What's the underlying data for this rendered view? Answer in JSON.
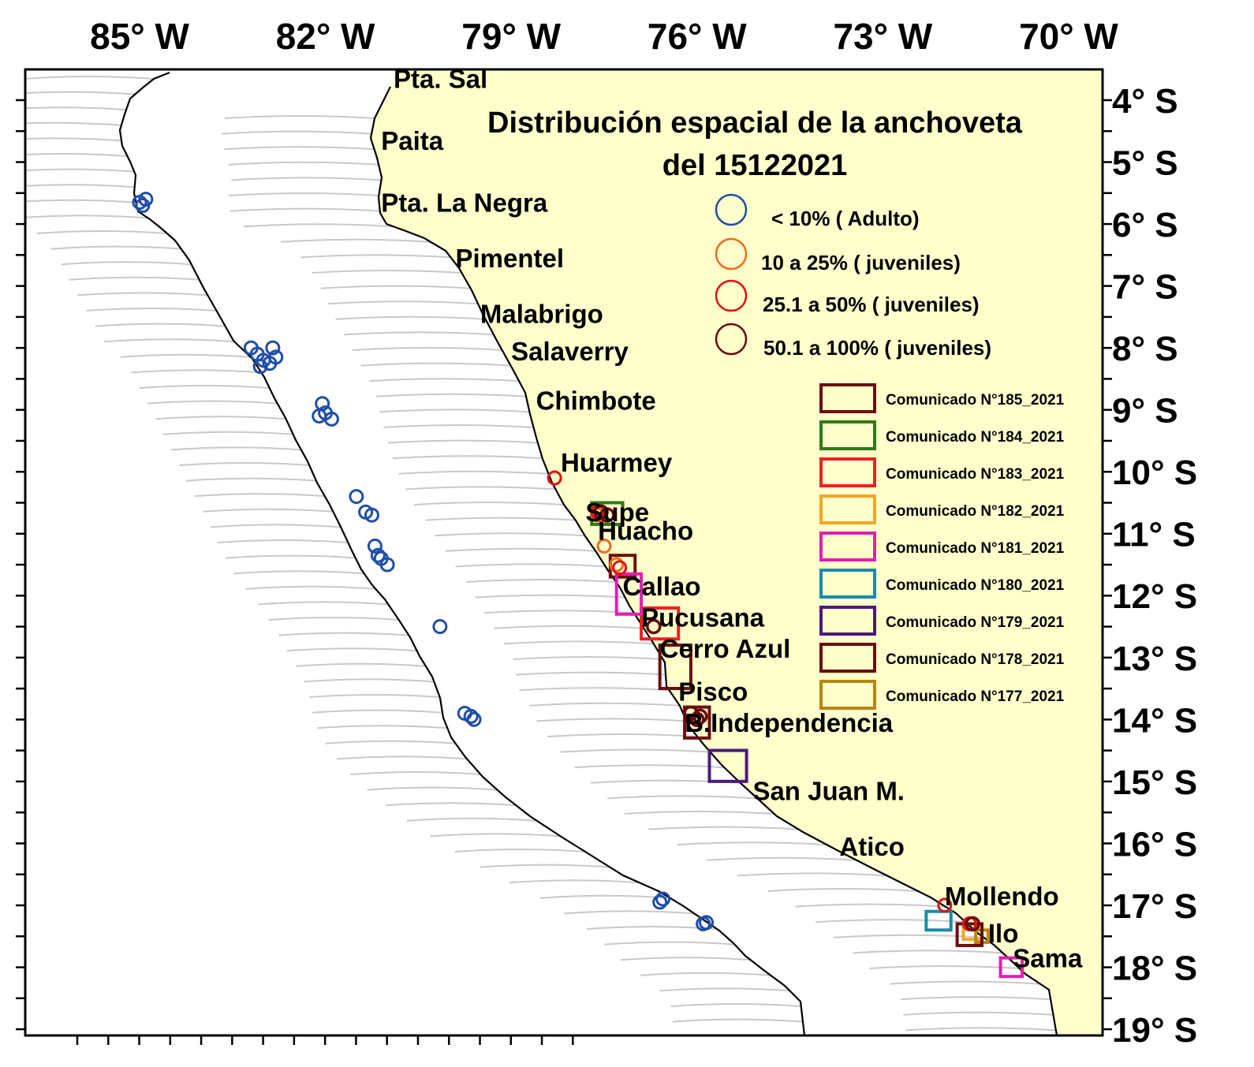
{
  "title": {
    "line1": "Distribución espacial de la anchoveta",
    "line2": "del 15122021"
  },
  "axes": {
    "lon_labels": [
      "85° W",
      "82° W",
      "79° W",
      "76° W",
      "73° W",
      "70° W"
    ],
    "lat_labels": [
      "4° S",
      "5° S",
      "6° S",
      "7° S",
      "8° S",
      "9° S",
      "10° S",
      "11° S",
      "12° S",
      "13° S",
      "14° S",
      "15° S",
      "16° S",
      "17° S",
      "18° S",
      "19° S"
    ]
  },
  "places": [
    {
      "name": "Pta. Sal",
      "lon": -80.9,
      "lat": -3.8
    },
    {
      "name": "Paita",
      "lon": -81.1,
      "lat": -4.8
    },
    {
      "name": "Pta. La Negra",
      "lon": -81.1,
      "lat": -5.8
    },
    {
      "name": "Pimentel",
      "lon": -79.9,
      "lat": -6.7
    },
    {
      "name": "Malabrigo",
      "lon": -79.5,
      "lat": -7.6
    },
    {
      "name": "Salaverry",
      "lon": -79.0,
      "lat": -8.2
    },
    {
      "name": "Chimbote",
      "lon": -78.6,
      "lat": -9.0
    },
    {
      "name": "Huarmey",
      "lon": -78.2,
      "lat": -10.0
    },
    {
      "name": "Supe",
      "lon": -77.8,
      "lat": -10.8
    },
    {
      "name": "Huacho",
      "lon": -77.6,
      "lat": -11.1
    },
    {
      "name": "Callao",
      "lon": -77.2,
      "lat": -12.0
    },
    {
      "name": "Pucusana",
      "lon": -76.9,
      "lat": -12.5
    },
    {
      "name": "Cerro Azul",
      "lon": -76.6,
      "lat": -13.0
    },
    {
      "name": "Pisco",
      "lon": -76.3,
      "lat": -13.7
    },
    {
      "name": "B.Independencia",
      "lon": -76.2,
      "lat": -14.2
    },
    {
      "name": "San Juan M.",
      "lon": -75.1,
      "lat": -15.3
    },
    {
      "name": "Atico",
      "lon": -73.7,
      "lat": -16.2
    },
    {
      "name": "Mollendo",
      "lon": -72.0,
      "lat": -17.0
    },
    {
      "name": "Ilo",
      "lon": -71.3,
      "lat": -17.6
    },
    {
      "name": "Sama",
      "lon": -70.9,
      "lat": -18.0
    }
  ],
  "circle_legend": [
    {
      "label": "< 10% ( Adulto)",
      "color": "#1f4ea8"
    },
    {
      "label": "10 a 25% ( juveniles)",
      "color": "#ee6a1e"
    },
    {
      "label": "25.1 a 50% ( juveniles)",
      "color": "#e01010"
    },
    {
      "label": "50.1 a 100%  ( juveniles)",
      "color": "#6a0a0a"
    }
  ],
  "box_legend": [
    {
      "label": "Comunicado N°185_2021",
      "color": "#6a1010"
    },
    {
      "label": "Comunicado N°184_2021",
      "color": "#2e7a1a"
    },
    {
      "label": "Comunicado N°183_2021",
      "color": "#f02020"
    },
    {
      "label": "Comunicado N°182_2021",
      "color": "#f5a623"
    },
    {
      "label": "Comunicado N°181_2021",
      "color": "#e020b0"
    },
    {
      "label": "Comunicado N°180_2021",
      "color": "#1a8aa8"
    },
    {
      "label": "Comunicado N°179_2021",
      "color": "#4a1a7a"
    },
    {
      "label": "Comunicado N°178_2021",
      "color": "#6a1010"
    },
    {
      "label": "Comunicado N°177_2021",
      "color": "#b8860b"
    }
  ],
  "zones": [
    {
      "comunicado": "185",
      "lon": [
        -77.4,
        -77.0
      ],
      "lat": [
        -11.35,
        -11.7
      ]
    },
    {
      "comunicado": "184",
      "lon": [
        -77.7,
        -77.2
      ],
      "lat": [
        -10.5,
        -10.85
      ]
    },
    {
      "comunicado": "183",
      "lon": [
        -76.9,
        -76.3
      ],
      "lat": [
        -12.2,
        -12.7
      ]
    },
    {
      "comunicado": "181",
      "lon": [
        -77.3,
        -76.9
      ],
      "lat": [
        -11.65,
        -12.3
      ]
    },
    {
      "comunicado": "178",
      "lon": [
        -76.6,
        -76.1
      ],
      "lat": [
        -12.8,
        -13.5
      ]
    },
    {
      "comunicado": "185",
      "lon": [
        -76.2,
        -75.8
      ],
      "lat": [
        -13.8,
        -14.3
      ]
    },
    {
      "comunicado": "179",
      "lon": [
        -75.8,
        -75.2
      ],
      "lat": [
        -14.5,
        -15.0
      ]
    },
    {
      "comunicado": "180",
      "lon": [
        -72.3,
        -71.9
      ],
      "lat": [
        -17.1,
        -17.4
      ]
    },
    {
      "comunicado": "182",
      "lon": [
        -71.7,
        -71.4
      ],
      "lat": [
        -17.3,
        -17.55
      ]
    },
    {
      "comunicado": "177",
      "lon": [
        -71.5,
        -71.3
      ],
      "lat": [
        -17.4,
        -17.6
      ]
    },
    {
      "comunicado": "178",
      "lon": [
        -71.8,
        -71.4
      ],
      "lat": [
        -17.3,
        -17.65
      ]
    },
    {
      "comunicado": "181",
      "lon": [
        -71.1,
        -70.75
      ],
      "lat": [
        -17.85,
        -18.15
      ]
    }
  ],
  "obs_adult": [
    {
      "lon": -85.0,
      "lat": -5.65
    },
    {
      "lon": -84.95,
      "lat": -5.7
    },
    {
      "lon": -84.9,
      "lat": -5.6
    },
    {
      "lon": -83.2,
      "lat": -8.0
    },
    {
      "lon": -83.1,
      "lat": -8.1
    },
    {
      "lon": -83.0,
      "lat": -8.2
    },
    {
      "lon": -82.9,
      "lat": -8.25
    },
    {
      "lon": -82.8,
      "lat": -8.15
    },
    {
      "lon": -82.85,
      "lat": -8.0
    },
    {
      "lon": -83.05,
      "lat": -8.3
    },
    {
      "lon": -82.05,
      "lat": -8.9
    },
    {
      "lon": -82.0,
      "lat": -9.05
    },
    {
      "lon": -82.1,
      "lat": -9.1
    },
    {
      "lon": -81.9,
      "lat": -9.15
    },
    {
      "lon": -81.5,
      "lat": -10.4
    },
    {
      "lon": -81.35,
      "lat": -10.65
    },
    {
      "lon": -81.25,
      "lat": -10.7
    },
    {
      "lon": -81.2,
      "lat": -11.2
    },
    {
      "lon": -81.1,
      "lat": -11.4
    },
    {
      "lon": -81.0,
      "lat": -11.5
    },
    {
      "lon": -81.15,
      "lat": -11.35
    },
    {
      "lon": -80.15,
      "lat": -12.5
    },
    {
      "lon": -79.75,
      "lat": -13.9
    },
    {
      "lon": -79.6,
      "lat": -14.0
    },
    {
      "lon": -79.65,
      "lat": -13.95
    },
    {
      "lon": -76.6,
      "lat": -16.95
    },
    {
      "lon": -76.55,
      "lat": -16.9
    },
    {
      "lon": -75.9,
      "lat": -17.3
    },
    {
      "lon": -75.85,
      "lat": -17.28
    }
  ],
  "obs_10_25": [
    {
      "lon": -77.6,
      "lat": -10.7
    },
    {
      "lon": -77.5,
      "lat": -11.2
    },
    {
      "lon": -77.3,
      "lat": -11.5
    }
  ],
  "obs_25_50": [
    {
      "lon": -78.3,
      "lat": -10.1
    },
    {
      "lon": -77.6,
      "lat": -10.65
    },
    {
      "lon": -77.25,
      "lat": -11.55
    },
    {
      "lon": -72.0,
      "lat": -17.0
    },
    {
      "lon": -71.6,
      "lat": -17.3
    }
  ],
  "obs_50_100": [
    {
      "lon": -77.55,
      "lat": -10.65
    },
    {
      "lon": -77.45,
      "lat": -10.7
    },
    {
      "lon": -76.7,
      "lat": -12.5
    },
    {
      "lon": -76.1,
      "lat": -13.9
    },
    {
      "lon": -76.0,
      "lat": -14.0
    },
    {
      "lon": -75.95,
      "lat": -13.95
    },
    {
      "lon": -71.55,
      "lat": -17.3
    }
  ]
}
